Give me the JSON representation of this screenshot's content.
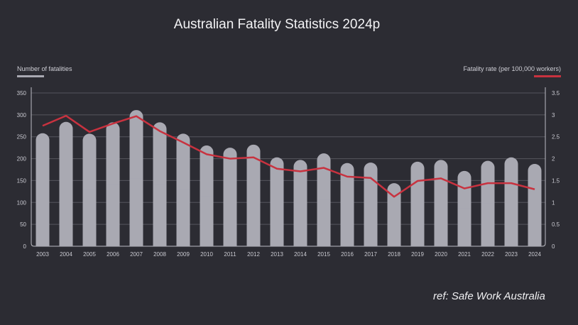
{
  "chart_data": {
    "type": "bar",
    "title": "Australian Fatality Statistics 2024p",
    "categories": [
      "2003",
      "2004",
      "2005",
      "2006",
      "2007",
      "2008",
      "2009",
      "2010",
      "2011",
      "2012",
      "2013",
      "2014",
      "2015",
      "2016",
      "2017",
      "2018",
      "2019",
      "2020",
      "2021",
      "2022",
      "2023",
      "2024"
    ],
    "series": [
      {
        "name": "Number of fatalities",
        "type": "bar",
        "axis": "left",
        "color": "#a9a9b2",
        "values": [
          258,
          284,
          257,
          283,
          311,
          283,
          257,
          230,
          225,
          232,
          203,
          197,
          212,
          190,
          191,
          144,
          193,
          197,
          172,
          195,
          203,
          188
        ]
      },
      {
        "name": "Fatality rate (per 100,000 workers)",
        "type": "line",
        "axis": "right",
        "color": "#c8323f",
        "values": [
          2.75,
          2.98,
          2.61,
          2.8,
          2.97,
          2.63,
          2.37,
          2.1,
          2.0,
          2.03,
          1.77,
          1.71,
          1.79,
          1.59,
          1.56,
          1.13,
          1.49,
          1.55,
          1.32,
          1.44,
          1.44,
          1.3
        ]
      }
    ],
    "left_axis": {
      "ylim": [
        0,
        350
      ],
      "ticks": [
        "0",
        "50",
        "100",
        "150",
        "200",
        "250",
        "300",
        "350"
      ]
    },
    "right_axis": {
      "ylim": [
        0,
        3.5
      ],
      "ticks": [
        "0",
        "0.5",
        "1",
        "1.5",
        "2",
        "2.5",
        "3",
        "3.5"
      ]
    },
    "grid": true,
    "legend": [
      "top-left",
      "top-right"
    ]
  },
  "footer": {
    "ref": "ref: Safe Work Australia"
  }
}
